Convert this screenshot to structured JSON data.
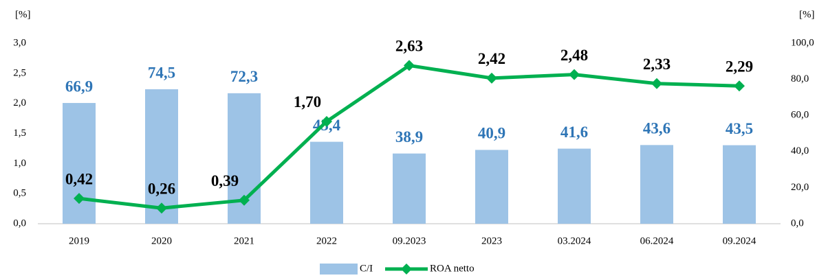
{
  "chart_data": {
    "type": "bar-line",
    "y_label": "[%]",
    "y2_label": "[%]",
    "categories": [
      "2019",
      "2020",
      "2021",
      "2022",
      "09.2023",
      "2023",
      "03.2024",
      "06.2024",
      "09.2024"
    ],
    "series": [
      {
        "name": "C/I",
        "type": "bar",
        "axis": "y2",
        "color": "#9dc3e6",
        "label_color": "#2e75b6",
        "values": [
          66.9,
          74.5,
          72.3,
          45.4,
          38.9,
          40.9,
          41.6,
          43.6,
          43.5
        ],
        "value_labels": [
          "66,9",
          "74,5",
          "72,3",
          "45,4",
          "38,9",
          "40,9",
          "41,6",
          "43,6",
          "43,5"
        ]
      },
      {
        "name": "ROA netto",
        "type": "line",
        "axis": "y",
        "color": "#00b050",
        "label_color": "#000000",
        "values": [
          0.42,
          0.26,
          0.39,
          1.7,
          2.63,
          2.42,
          2.48,
          2.33,
          2.29
        ],
        "value_labels": [
          "0,42",
          "0,26",
          "0,39",
          "1,70",
          "2,63",
          "2,42",
          "2,48",
          "2,33",
          "2,29"
        ]
      }
    ],
    "ylim": [
      0,
      3
    ],
    "yticks": [
      {
        "value": 0,
        "label": "0,0"
      },
      {
        "value": 0.5,
        "label": "0,5"
      },
      {
        "value": 1,
        "label": "1,0"
      },
      {
        "value": 1.5,
        "label": "1,5"
      },
      {
        "value": 2,
        "label": "2,0"
      },
      {
        "value": 2.5,
        "label": "2,5"
      },
      {
        "value": 3,
        "label": "3,0"
      }
    ],
    "y2lim": [
      0,
      100
    ],
    "y2ticks": [
      {
        "value": 0,
        "label": "0,0"
      },
      {
        "value": 20,
        "label": "20,0"
      },
      {
        "value": 40,
        "label": "40,0"
      },
      {
        "value": 60,
        "label": "60,0"
      },
      {
        "value": 80,
        "label": "80,0"
      },
      {
        "value": 100,
        "label": "100,0"
      }
    ],
    "grid": false,
    "legend": "bottom"
  }
}
